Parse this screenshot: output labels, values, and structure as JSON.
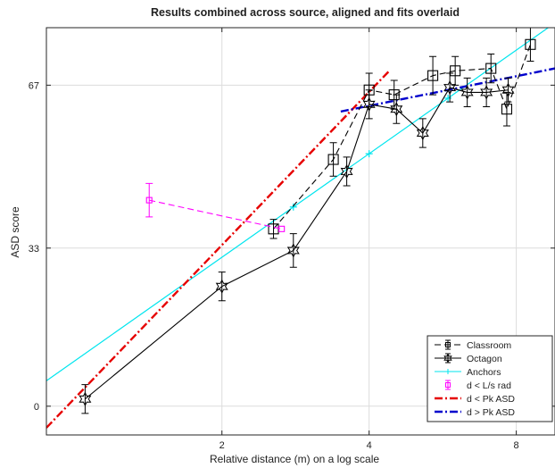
{
  "chart_data": {
    "type": "line",
    "title": "Results combined across source, aligned and fits overlaid",
    "xlabel": "Relative distance (m) on a log scale",
    "ylabel": "ASD score",
    "x_scale": "log2",
    "xlim": [
      0.875,
      9.6
    ],
    "ylim": [
      -6,
      79
    ],
    "xticks": [
      {
        "v": 2,
        "label": "2"
      },
      {
        "v": 4,
        "label": "4"
      },
      {
        "v": 8,
        "label": "8"
      }
    ],
    "yticks": [
      {
        "v": 0,
        "label": "0"
      },
      {
        "v": 33,
        "label": "33"
      },
      {
        "v": 67,
        "label": "67"
      }
    ],
    "grid": true,
    "legend_position": "bottom-right",
    "series": [
      {
        "name": "Classroom",
        "color": "#000000",
        "style": "dashed",
        "marker": "square",
        "x": [
          2.55,
          3.38,
          4.0,
          4.5,
          5.4,
          6.0,
          7.1,
          7.65,
          8.55
        ],
        "y": [
          37,
          51.5,
          66,
          65,
          69,
          70,
          70.5,
          62,
          75.5
        ],
        "err": [
          2,
          3.5,
          3.5,
          3,
          4,
          3,
          3,
          3.5,
          3.5
        ]
      },
      {
        "name": "Octagon",
        "color": "#000000",
        "style": "solid",
        "marker": "hexagram",
        "x": [
          1.05,
          2.0,
          2.8,
          3.6,
          4.0,
          4.55,
          5.15,
          5.85,
          6.35,
          6.95,
          7.7
        ],
        "y": [
          1.5,
          25,
          32.5,
          49,
          63,
          62,
          57,
          66.5,
          65.5,
          65.5,
          66
        ],
        "err": [
          3,
          3,
          3.5,
          3,
          3,
          3,
          3,
          3,
          3,
          3,
          2.5
        ]
      },
      {
        "name": "d < L/s rad",
        "color": "#ff00ff",
        "style": "dashed",
        "marker": "square",
        "x": [
          1.42,
          2.65
        ],
        "y": [
          43,
          37
        ],
        "err": [
          3.5,
          0
        ]
      }
    ],
    "fits": [
      {
        "name": "Anchors",
        "color": "#00e5ee",
        "style": "solid",
        "x": [
          0.875,
          9.6
        ],
        "y": [
          5.3,
          80
        ]
      },
      {
        "name": "d < Pk ASD",
        "color": "#e60000",
        "style": "dashdot",
        "x": [
          0.875,
          4.4
        ],
        "y": [
          -4.5,
          70
        ]
      },
      {
        "name": "d > Pk ASD",
        "color": "#0000cc",
        "style": "dashdot",
        "x": [
          3.5,
          9.6
        ],
        "y": [
          61.5,
          70.5
        ]
      }
    ],
    "legend": [
      "Classroom",
      "Octagon",
      "Anchors",
      "d < L/s rad",
      "d < Pk ASD",
      "d > Pk ASD"
    ]
  }
}
